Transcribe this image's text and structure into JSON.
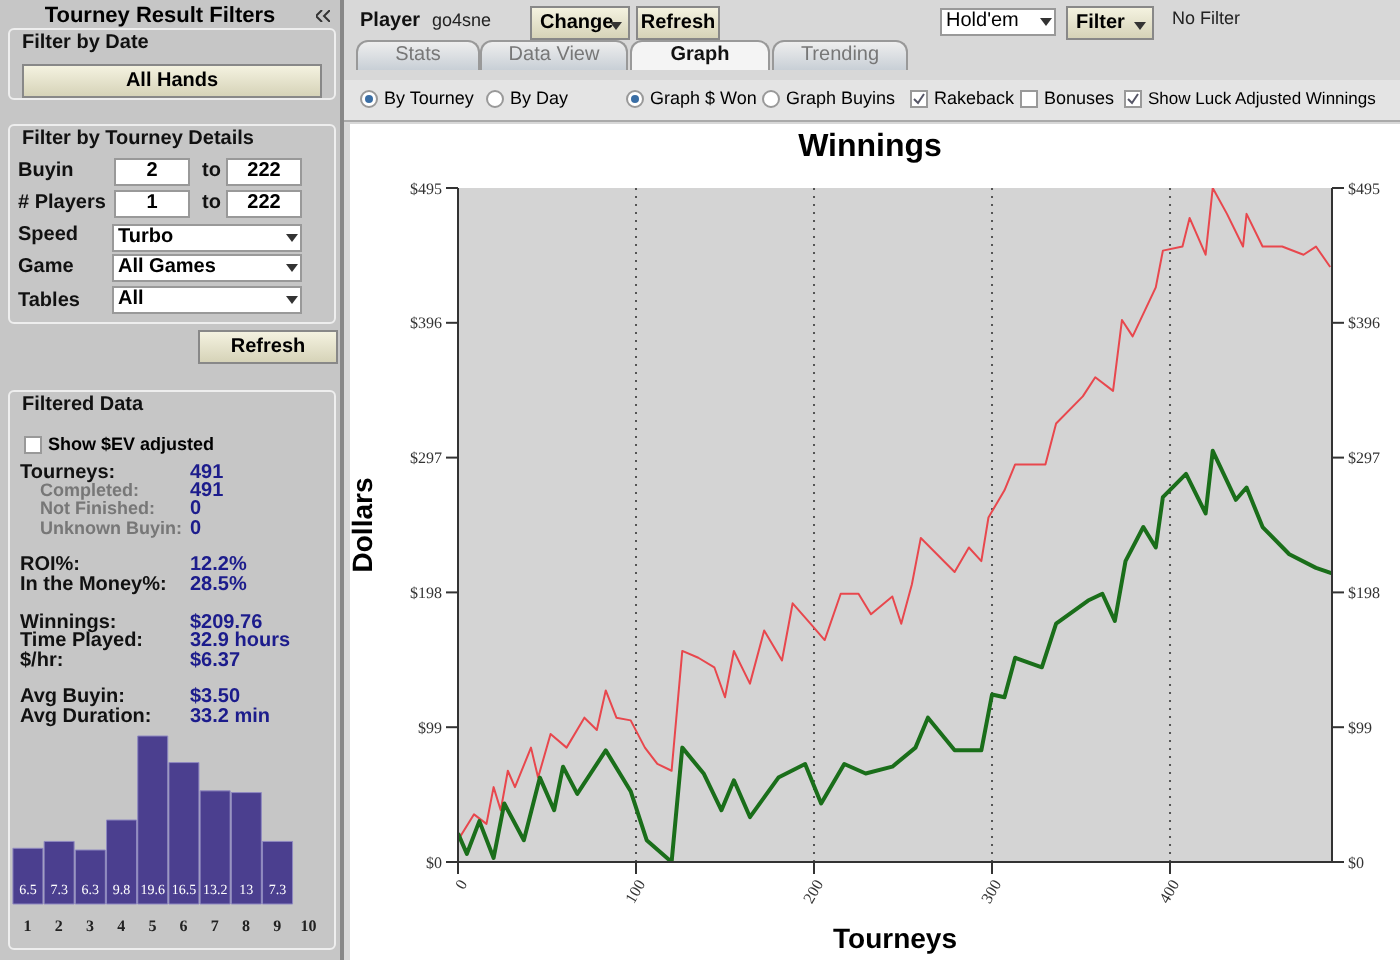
{
  "chart_data": [
    {
      "type": "line",
      "title": "Winnings",
      "xlabel": "Tourneys",
      "ylabel": "Dollars",
      "xlim": [
        0,
        491
      ],
      "xticks": [
        0,
        100,
        200,
        300,
        400
      ],
      "ylim": [
        0,
        495
      ],
      "yticks": [
        {
          "value": 0,
          "label": "$0"
        },
        {
          "value": 99,
          "label": "$99"
        },
        {
          "value": 198,
          "label": "$198"
        },
        {
          "value": 297,
          "label": "$297"
        },
        {
          "value": 396,
          "label": "$396"
        },
        {
          "value": 495,
          "label": "$495"
        }
      ],
      "y2lim": [
        0,
        495
      ],
      "y2ticks": [
        {
          "value": 0,
          "label": "$0"
        },
        {
          "value": 99,
          "label": "$99"
        },
        {
          "value": 198,
          "label": "$198"
        },
        {
          "value": 297,
          "label": "$297"
        },
        {
          "value": 396,
          "label": "$396"
        },
        {
          "value": 495,
          "label": "$495"
        }
      ],
      "grid": true,
      "marker": "none",
      "series": [
        {
          "color": "#e8474d",
          "x": [
            0,
            9,
            16,
            20,
            24,
            28,
            32,
            41,
            45,
            52,
            61,
            71,
            78,
            83,
            89,
            97,
            105,
            112,
            120,
            126,
            135,
            144,
            150,
            155,
            164,
            172,
            182,
            188,
            198,
            206,
            215,
            225,
            232,
            244,
            249,
            255,
            260,
            279,
            287,
            294,
            298,
            307,
            313,
            330,
            336,
            351,
            358,
            368,
            373,
            379,
            392,
            396,
            407,
            411,
            420,
            424,
            432,
            441,
            443,
            452,
            463,
            475,
            482,
            490
          ],
          "values": [
            16,
            35,
            28,
            55,
            38,
            67,
            55,
            84,
            62,
            94,
            84,
            106,
            97,
            126,
            106,
            104,
            84,
            72,
            67,
            155,
            150,
            143,
            121,
            155,
            131,
            170,
            148,
            190,
            175,
            163,
            197,
            197,
            182,
            195,
            175,
            204,
            238,
            213,
            231,
            221,
            253,
            273,
            292,
            292,
            322,
            342,
            356,
            346,
            398,
            386,
            422,
            449,
            452,
            473,
            446,
            495,
            476,
            452,
            476,
            452,
            452,
            446,
            452,
            437
          ]
        },
        {
          "color": "#1a6e1a",
          "x": [
            0,
            5,
            12,
            20,
            26,
            37,
            46,
            54,
            59,
            67,
            83,
            97,
            106,
            120,
            126,
            138,
            148,
            155,
            164,
            180,
            195,
            204,
            217,
            229,
            244,
            257,
            264,
            279,
            294,
            300,
            307,
            313,
            328,
            336,
            354,
            362,
            369,
            375,
            385,
            392,
            396,
            409,
            420,
            424,
            437,
            443,
            452,
            467,
            482,
            491
          ],
          "values": [
            21,
            6,
            30,
            3,
            43,
            16,
            62,
            38,
            70,
            50,
            82,
            52,
            16,
            0,
            84,
            65,
            38,
            60,
            33,
            62,
            72,
            43,
            72,
            65,
            70,
            84,
            106,
            82,
            82,
            123,
            121,
            150,
            143,
            175,
            192,
            197,
            177,
            221,
            246,
            231,
            268,
            285,
            256,
            302,
            266,
            275,
            246,
            226,
            216,
            212
          ]
        }
      ]
    },
    {
      "type": "bar",
      "categories": [
        "1",
        "2",
        "3",
        "4",
        "5",
        "6",
        "7",
        "8",
        "9",
        "10"
      ],
      "values": [
        6.5,
        7.3,
        6.3,
        9.8,
        19.6,
        16.5,
        13.2,
        13.0,
        7.3,
        null
      ],
      "color": "#4b3f8f",
      "data_labels": true
    },
    {
      "type": "other",
      "title": "Tourney Result Filters",
      "annotations": [
        "Player",
        "go4sne",
        "Change",
        "Refresh",
        "Hold'em",
        "Filter",
        "No Filter",
        "Stats",
        "Data View",
        "Graph",
        "Trending",
        "By Tourney",
        "By Day",
        "Graph $ Won",
        "Graph Buyins",
        "Rakeback",
        "Bonuses",
        "Show Luck Adjusted Winnings",
        "Filter by Date",
        "All Hands",
        "Filter by Tourney Details",
        "Buyin",
        "2",
        "to",
        "222",
        "# Players",
        "1",
        "to",
        "222",
        "Speed",
        "Turbo",
        "Game",
        "All Games",
        "Tables",
        "All",
        "Refresh",
        "Filtered Data",
        "Show $EV adjusted",
        "Tourneys:",
        "491",
        "Completed:",
        "491",
        "Not Finished:",
        "0",
        "Unknown Buyin:",
        "0",
        "ROI%:",
        "12.2%",
        "In the Money%:",
        "28.5%",
        "Winnings:",
        "$209.76",
        "Time Played:",
        "32.9 hours",
        "$/hr:",
        "$6.37",
        "Avg Buyin:",
        "$3.50",
        "Avg Duration:",
        "33.2 min"
      ]
    }
  ]
}
